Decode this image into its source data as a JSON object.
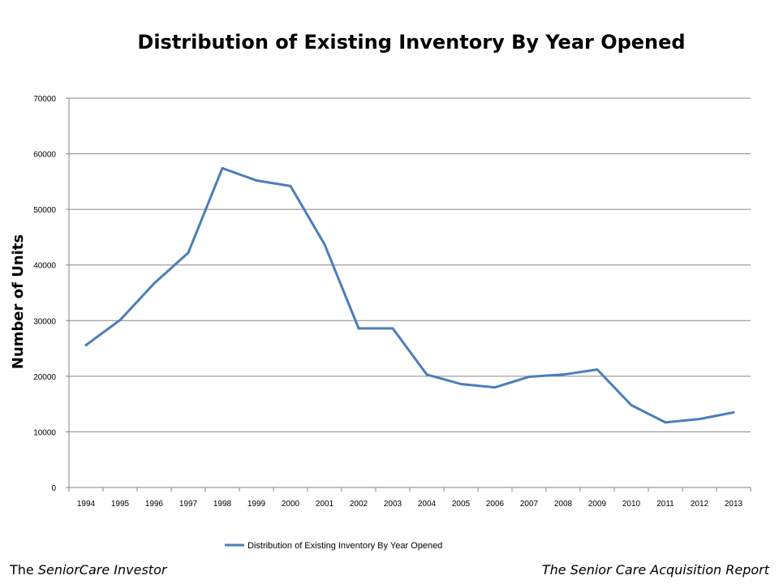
{
  "chart_data": {
    "type": "line",
    "title": "Distribution of Existing Inventory By Year Opened",
    "xlabel": "",
    "ylabel": "Number of Units",
    "ylim": [
      0,
      70000
    ],
    "yticks": [
      0,
      10000,
      20000,
      30000,
      40000,
      50000,
      60000,
      70000
    ],
    "grid": true,
    "legend_position": "bottom",
    "categories": [
      "1994",
      "1995",
      "1996",
      "1997",
      "1998",
      "1999",
      "2000",
      "2001",
      "2002",
      "2003",
      "2004",
      "2005",
      "2006",
      "2007",
      "2008",
      "2009",
      "2010",
      "2011",
      "2012",
      "2013"
    ],
    "series": [
      {
        "name": "Distribution of Existing Inventory By Year Opened",
        "color": "#4a7ebb",
        "values": [
          25600,
          30100,
          36700,
          42200,
          57400,
          55200,
          54200,
          43700,
          28600,
          28600,
          20300,
          18600,
          18000,
          19900,
          20300,
          21200,
          14800,
          11700,
          12300,
          13500
        ]
      }
    ]
  },
  "footer": {
    "left_prefix": "The ",
    "left_italic": "SeniorCare Investor",
    "right": "The Senior Care Acquisition Report"
  }
}
